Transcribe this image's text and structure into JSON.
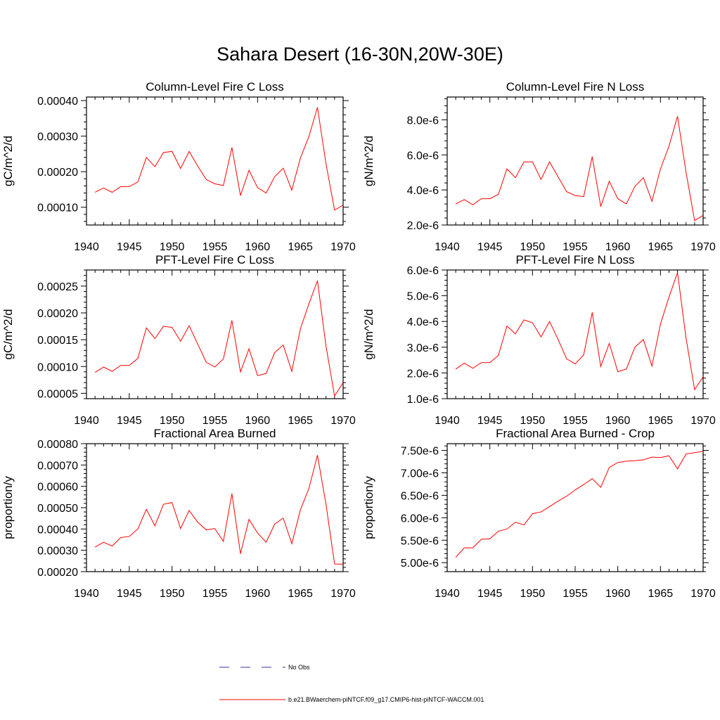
{
  "title": "Sahara Desert (16-30N,20W-30E)",
  "colors": {
    "model": "#ff0000",
    "obs": "#3333aa",
    "axis": "#000000"
  },
  "legend": {
    "obs_label": "No Obs",
    "model_label": "b.e21.BWaerchem-piNTCF.f09_g17.CMIP6-hist-piNTCF-WACCM.001"
  },
  "chart_data": [
    {
      "type": "line",
      "title": "Column-Level Fire C Loss",
      "ylabel": "gC/m^2/d",
      "xlim": [
        1940,
        1970
      ],
      "ylim": [
        5e-05,
        0.00041
      ],
      "xticks": [
        1940,
        1945,
        1950,
        1955,
        1960,
        1965,
        1970
      ],
      "xtick_labels": [
        "1940",
        "1945",
        "1950",
        "1955",
        "1960",
        "1965",
        "1970"
      ],
      "yticks": [
        0.0001,
        0.0002,
        0.0003,
        0.0004
      ],
      "ytick_labels": [
        "0.00010",
        "0.00020",
        "0.00030",
        "0.00040"
      ],
      "x": [
        1941,
        1942,
        1943,
        1944,
        1945,
        1946,
        1947,
        1948,
        1949,
        1950,
        1951,
        1952,
        1953,
        1954,
        1955,
        1956,
        1957,
        1958,
        1959,
        1960,
        1961,
        1962,
        1963,
        1964,
        1965,
        1966,
        1967,
        1968,
        1969,
        1970
      ],
      "values": [
        0.000142,
        0.000154,
        0.000142,
        0.000158,
        0.000158,
        0.000171,
        0.00024,
        0.000214,
        0.000254,
        0.000257,
        0.000209,
        0.000257,
        0.000216,
        0.000178,
        0.000166,
        0.000161,
        0.000268,
        0.000133,
        0.000204,
        0.000155,
        0.00014,
        0.000186,
        0.00021,
        0.000148,
        0.000238,
        0.000299,
        0.000381,
        0.000222,
        9.2e-05,
        0.000106
      ]
    },
    {
      "type": "line",
      "title": "Column-Level Fire N Loss",
      "ylabel": "gN/m^2/d",
      "xlim": [
        1940,
        1970
      ],
      "ylim": [
        2e-06,
        9.3e-06
      ],
      "xticks": [
        1940,
        1945,
        1950,
        1955,
        1960,
        1965,
        1970
      ],
      "xtick_labels": [
        "1940",
        "1945",
        "1950",
        "1955",
        "1960",
        "1965",
        "1970"
      ],
      "yticks": [
        2e-06,
        4e-06,
        6e-06,
        8e-06
      ],
      "ytick_labels": [
        "2.0e-6",
        "4.0e-6",
        "6.0e-6",
        "8.0e-6"
      ],
      "x": [
        1941,
        1942,
        1943,
        1944,
        1945,
        1946,
        1947,
        1948,
        1949,
        1950,
        1951,
        1952,
        1953,
        1954,
        1955,
        1956,
        1957,
        1958,
        1959,
        1960,
        1961,
        1962,
        1963,
        1964,
        1965,
        1966,
        1967,
        1968,
        1969,
        1970
      ],
      "values": [
        3.2e-06,
        3.45e-06,
        3.15e-06,
        3.5e-06,
        3.5e-06,
        3.75e-06,
        5.2e-06,
        4.7e-06,
        5.6e-06,
        5.6e-06,
        4.6e-06,
        5.6e-06,
        4.75e-06,
        3.9e-06,
        3.68e-06,
        3.62e-06,
        5.9e-06,
        3.05e-06,
        4.5e-06,
        3.5e-06,
        3.2e-06,
        4.2e-06,
        4.7e-06,
        3.35e-06,
        5.2e-06,
        6.5e-06,
        8.2e-06,
        5e-06,
        2.25e-06,
        2.55e-06
      ]
    },
    {
      "type": "line",
      "title": "PFT-Level Fire C Loss",
      "ylabel": "gC/m^2/d",
      "xlim": [
        1940,
        1970
      ],
      "ylim": [
        4e-05,
        0.00028
      ],
      "xticks": [
        1940,
        1945,
        1950,
        1955,
        1960,
        1965,
        1970
      ],
      "xtick_labels": [
        "1940",
        "1945",
        "1950",
        "1955",
        "1960",
        "1965",
        "1970"
      ],
      "yticks": [
        5e-05,
        0.0001,
        0.00015,
        0.0002,
        0.00025
      ],
      "ytick_labels": [
        "0.00005",
        "0.00010",
        "0.00015",
        "0.00020",
        "0.00025"
      ],
      "x": [
        1941,
        1942,
        1943,
        1944,
        1945,
        1946,
        1947,
        1948,
        1949,
        1950,
        1951,
        1952,
        1953,
        1954,
        1955,
        1956,
        1957,
        1958,
        1959,
        1960,
        1961,
        1962,
        1963,
        1964,
        1965,
        1966,
        1967,
        1968,
        1969,
        1970
      ],
      "values": [
        8.9e-05,
        9.9e-05,
        9.1e-05,
        0.000102,
        0.000102,
        0.000115,
        0.000172,
        0.000152,
        0.000175,
        0.000173,
        0.000147,
        0.000176,
        0.000142,
        0.000108,
        9.9e-05,
        0.000114,
        0.000186,
        9e-05,
        0.000133,
        8.3e-05,
        8.7e-05,
        0.000126,
        0.00014,
        9.1e-05,
        0.00017,
        0.000217,
        0.00026,
        0.000138,
        4.5e-05,
        7e-05
      ]
    },
    {
      "type": "line",
      "title": "PFT-Level Fire N Loss",
      "ylabel": "gN/m^2/d",
      "xlim": [
        1940,
        1970
      ],
      "ylim": [
        1e-06,
        6e-06
      ],
      "xticks": [
        1940,
        1945,
        1950,
        1955,
        1960,
        1965,
        1970
      ],
      "xtick_labels": [
        "1940",
        "1945",
        "1950",
        "1955",
        "1960",
        "1965",
        "1970"
      ],
      "yticks": [
        1e-06,
        2e-06,
        3e-06,
        4e-06,
        5e-06,
        6e-06
      ],
      "ytick_labels": [
        "1.0e-6",
        "2.0e-6",
        "3.0e-6",
        "4.0e-6",
        "5.0e-6",
        "6.0e-6"
      ],
      "x": [
        1941,
        1942,
        1943,
        1944,
        1945,
        1946,
        1947,
        1948,
        1949,
        1950,
        1951,
        1952,
        1953,
        1954,
        1955,
        1956,
        1957,
        1958,
        1959,
        1960,
        1961,
        1962,
        1963,
        1964,
        1965,
        1966,
        1967,
        1968,
        1969,
        1970
      ],
      "values": [
        2.15e-06,
        2.38e-06,
        2.18e-06,
        2.4e-06,
        2.4e-06,
        2.68e-06,
        3.82e-06,
        3.52e-06,
        4.06e-06,
        3.95e-06,
        3.4e-06,
        4e-06,
        3.3e-06,
        2.55e-06,
        2.35e-06,
        2.7e-06,
        4.35e-06,
        2.25e-06,
        3.15e-06,
        2.05e-06,
        2.15e-06,
        3e-06,
        3.3e-06,
        2.27e-06,
        3.9e-06,
        4.95e-06,
        5.9e-06,
        3.35e-06,
        1.35e-06,
        1.85e-06
      ]
    },
    {
      "type": "line",
      "title": "Fractional Area Burned",
      "ylabel": "proportion/y",
      "xlim": [
        1940,
        1970
      ],
      "ylim": [
        0.0002,
        0.0008
      ],
      "xticks": [
        1940,
        1945,
        1950,
        1955,
        1960,
        1965,
        1970
      ],
      "xtick_labels": [
        "1940",
        "1945",
        "1950",
        "1955",
        "1960",
        "1965",
        "1970"
      ],
      "yticks": [
        0.0002,
        0.0003,
        0.0004,
        0.0005,
        0.0006,
        0.0007,
        0.0008
      ],
      "ytick_labels": [
        "0.00020",
        "0.00030",
        "0.00040",
        "0.00050",
        "0.00060",
        "0.00070",
        "0.00080"
      ],
      "x": [
        1941,
        1942,
        1943,
        1944,
        1945,
        1946,
        1947,
        1948,
        1949,
        1950,
        1951,
        1952,
        1953,
        1954,
        1955,
        1956,
        1957,
        1958,
        1959,
        1960,
        1961,
        1962,
        1963,
        1964,
        1965,
        1966,
        1967,
        1968,
        1969,
        1970
      ],
      "values": [
        0.000315,
        0.000338,
        0.00032,
        0.00036,
        0.000365,
        0.0004,
        0.000492,
        0.000415,
        0.000516,
        0.000524,
        0.000402,
        0.000487,
        0.000432,
        0.000396,
        0.000402,
        0.000342,
        0.000566,
        0.000284,
        0.000445,
        0.000381,
        0.000338,
        0.000423,
        0.000451,
        0.000331,
        0.000489,
        0.00059,
        0.000746,
        0.000515,
        0.000236,
        0.000235
      ]
    },
    {
      "type": "line",
      "title": "Fractional Area Burned - Crop",
      "ylabel": "proportion/y",
      "xlim": [
        1940,
        1970
      ],
      "ylim": [
        4.8e-06,
        7.65e-06
      ],
      "xticks": [
        1940,
        1945,
        1950,
        1955,
        1960,
        1965,
        1970
      ],
      "xtick_labels": [
        "1940",
        "1945",
        "1950",
        "1955",
        "1960",
        "1965",
        "1970"
      ],
      "yticks": [
        5e-06,
        5.5e-06,
        6e-06,
        6.5e-06,
        7e-06,
        7.5e-06
      ],
      "ytick_labels": [
        "5.00e-6",
        "5.50e-6",
        "6.00e-6",
        "6.50e-6",
        "7.00e-6",
        "7.50e-6"
      ],
      "x": [
        1941,
        1942,
        1943,
        1944,
        1945,
        1946,
        1947,
        1948,
        1949,
        1950,
        1951,
        1952,
        1953,
        1954,
        1955,
        1956,
        1957,
        1958,
        1959,
        1960,
        1961,
        1962,
        1963,
        1964,
        1965,
        1966,
        1967,
        1968,
        1969,
        1970
      ],
      "values": [
        5.12e-06,
        5.33e-06,
        5.33e-06,
        5.52e-06,
        5.53e-06,
        5.7e-06,
        5.75e-06,
        5.9e-06,
        5.84e-06,
        6.09e-06,
        6.13e-06,
        6.25e-06,
        6.37e-06,
        6.48e-06,
        6.62e-06,
        6.74e-06,
        6.87e-06,
        6.68e-06,
        7.12e-06,
        7.23e-06,
        7.26e-06,
        7.27e-06,
        7.29e-06,
        7.35e-06,
        7.34e-06,
        7.38e-06,
        7.09e-06,
        7.42e-06,
        7.45e-06,
        7.48e-06
      ]
    }
  ]
}
